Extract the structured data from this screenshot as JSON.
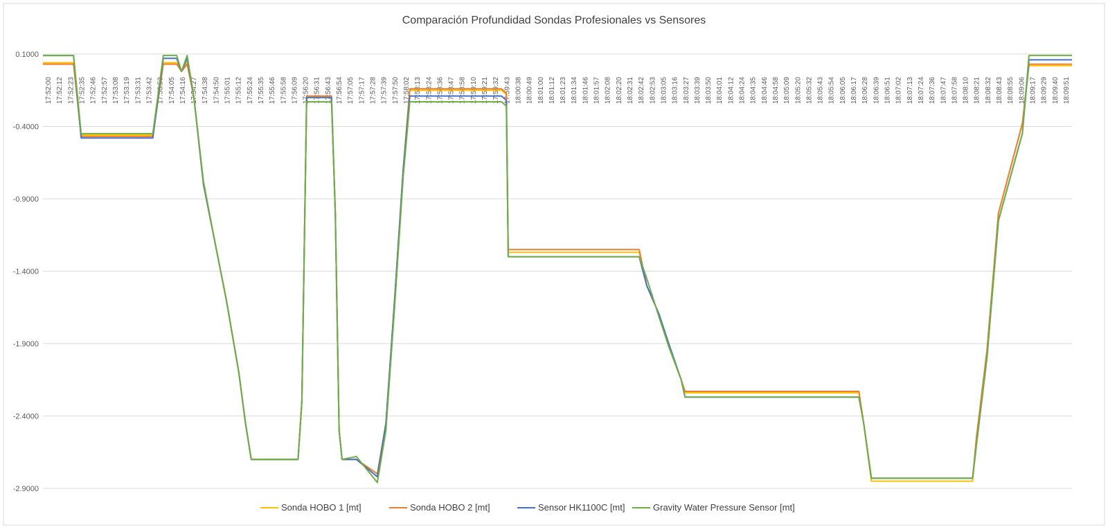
{
  "chart_data": {
    "type": "line",
    "title": "Comparación Profundidad Sondas Profesionales vs Sensores",
    "xlabel": "",
    "ylabel": "",
    "ylim": [
      -2.9,
      0.1
    ],
    "yticks": [
      0.1,
      -0.4,
      -0.9,
      -1.4,
      -1.9,
      -2.4,
      -2.9
    ],
    "ytick_labels": [
      "0.1000",
      "-0.4000",
      "-0.9000",
      "-1.4000",
      "-1.9000",
      "-2.4000",
      "-2.9000"
    ],
    "x_range": [
      "17:52:00",
      "18:09:57"
    ],
    "xtick_labels": [
      "17:52:00",
      "17:52:12",
      "17:52:23",
      "17:52:35",
      "17:52:46",
      "17:52:57",
      "17:53:08",
      "17:53:19",
      "17:53:31",
      "17:53:42",
      "17:53:53",
      "17:54:05",
      "17:54:16",
      "17:54:27",
      "17:54:38",
      "17:54:50",
      "17:55:01",
      "17:55:12",
      "17:55:24",
      "17:55:35",
      "17:55:46",
      "17:55:58",
      "17:56:09",
      "17:56:20",
      "17:56:31",
      "17:56:43",
      "17:56:54",
      "17:57:05",
      "17:57:17",
      "17:57:28",
      "17:57:39",
      "17:57:50",
      "17:58:02",
      "17:58:13",
      "17:58:24",
      "17:58:36",
      "17:58:47",
      "17:58:58",
      "17:59:10",
      "17:59:21",
      "17:59:32",
      "17:59:43",
      "18:00:38",
      "18:00:49",
      "18:01:00",
      "18:01:12",
      "18:01:23",
      "18:01:34",
      "18:01:46",
      "18:01:57",
      "18:02:08",
      "18:02:20",
      "18:02:31",
      "18:02:42",
      "18:02:53",
      "18:03:05",
      "18:03:16",
      "18:03:27",
      "18:03:39",
      "18:03:50",
      "18:04:01",
      "18:04:12",
      "18:04:24",
      "18:04:35",
      "18:04:46",
      "18:04:58",
      "18:05:09",
      "18:05:20",
      "18:05:32",
      "18:05:43",
      "18:05:54",
      "18:06:05",
      "18:06:17",
      "18:06:28",
      "18:06:39",
      "18:06:51",
      "18:07:02",
      "18:07:13",
      "18:07:24",
      "18:07:36",
      "18:07:47",
      "18:07:58",
      "18:08:10",
      "18:08:21",
      "18:08:32",
      "18:08:43",
      "18:08:55",
      "18:09:06",
      "18:09:17",
      "18:09:29",
      "18:09:40",
      "18:09:51"
    ],
    "grid": true,
    "legend_position": "bottom",
    "series": [
      {
        "name": "Sonda HOBO 1 [mt]",
        "color": "#FFC000",
        "points": [
          [
            "17:52:00",
            0.04
          ],
          [
            "17:52:32",
            0.04
          ],
          [
            "17:52:40",
            -0.46
          ],
          [
            "17:53:55",
            -0.46
          ],
          [
            "17:54:06",
            0.04
          ],
          [
            "17:54:20",
            0.04
          ],
          [
            "17:54:25",
            -0.02
          ],
          [
            "17:54:31",
            0.04
          ],
          [
            "17:54:38",
            -0.2
          ],
          [
            "17:54:48",
            -0.8
          ],
          [
            "17:55:00",
            -1.2
          ],
          [
            "17:55:12",
            -1.6
          ],
          [
            "17:55:25",
            -2.1
          ],
          [
            "17:55:32",
            -2.45
          ],
          [
            "17:55:38",
            -2.7
          ],
          [
            "17:56:27",
            -2.7
          ],
          [
            "17:56:31",
            -2.3
          ],
          [
            "17:56:36",
            -0.2
          ],
          [
            "17:57:02",
            -0.2
          ],
          [
            "17:57:06",
            -1.0
          ],
          [
            "17:57:10",
            -2.5
          ],
          [
            "17:57:13",
            -2.7
          ],
          [
            "17:57:28",
            -2.7
          ],
          [
            "17:57:50",
            -2.8
          ],
          [
            "17:57:59",
            -2.45
          ],
          [
            "17:58:08",
            -1.6
          ],
          [
            "17:58:17",
            -0.7
          ],
          [
            "17:58:24",
            -0.15
          ],
          [
            "18:00:00",
            -0.15
          ],
          [
            "18:00:05",
            -0.18
          ],
          [
            "18:00:07",
            -1.27
          ],
          [
            "18:02:24",
            -1.27
          ],
          [
            "18:02:32",
            -1.5
          ],
          [
            "18:02:45",
            -1.7
          ],
          [
            "18:02:55",
            -1.92
          ],
          [
            "18:03:08",
            -2.15
          ],
          [
            "18:03:12",
            -2.24
          ],
          [
            "18:06:14",
            -2.24
          ],
          [
            "18:06:19",
            -2.45
          ],
          [
            "18:06:27",
            -2.85
          ],
          [
            "18:08:13",
            -2.85
          ],
          [
            "18:08:17",
            -2.55
          ],
          [
            "18:08:28",
            -1.95
          ],
          [
            "18:08:40",
            -1.0
          ],
          [
            "18:09:05",
            -0.38
          ],
          [
            "18:09:12",
            0.02
          ],
          [
            "18:09:57",
            0.02
          ]
        ]
      },
      {
        "name": "Sonda HOBO 2 [mt]",
        "color": "#ED7D31",
        "points": [
          [
            "17:52:00",
            0.03
          ],
          [
            "17:52:32",
            0.03
          ],
          [
            "17:52:40",
            -0.47
          ],
          [
            "17:53:55",
            -0.47
          ],
          [
            "17:54:06",
            0.03
          ],
          [
            "17:54:20",
            0.03
          ],
          [
            "17:54:25",
            -0.02
          ],
          [
            "17:54:31",
            0.03
          ],
          [
            "17:54:38",
            -0.2
          ],
          [
            "17:54:48",
            -0.8
          ],
          [
            "17:55:00",
            -1.2
          ],
          [
            "17:55:12",
            -1.6
          ],
          [
            "17:55:25",
            -2.1
          ],
          [
            "17:55:32",
            -2.45
          ],
          [
            "17:55:38",
            -2.7
          ],
          [
            "17:56:27",
            -2.7
          ],
          [
            "17:56:31",
            -2.3
          ],
          [
            "17:56:36",
            -0.19
          ],
          [
            "17:57:02",
            -0.19
          ],
          [
            "17:57:06",
            -1.0
          ],
          [
            "17:57:10",
            -2.5
          ],
          [
            "17:57:13",
            -2.7
          ],
          [
            "17:57:28",
            -2.7
          ],
          [
            "17:57:50",
            -2.8
          ],
          [
            "17:57:59",
            -2.45
          ],
          [
            "17:58:08",
            -1.6
          ],
          [
            "17:58:17",
            -0.7
          ],
          [
            "17:58:24",
            -0.14
          ],
          [
            "18:00:00",
            -0.14
          ],
          [
            "18:00:05",
            -0.17
          ],
          [
            "18:00:07",
            -1.25
          ],
          [
            "18:02:24",
            -1.25
          ],
          [
            "18:02:32",
            -1.5
          ],
          [
            "18:02:45",
            -1.7
          ],
          [
            "18:02:55",
            -1.92
          ],
          [
            "18:03:08",
            -2.15
          ],
          [
            "18:03:12",
            -2.23
          ],
          [
            "18:06:14",
            -2.23
          ],
          [
            "18:06:19",
            -2.45
          ],
          [
            "18:06:27",
            -2.83
          ],
          [
            "18:08:13",
            -2.83
          ],
          [
            "18:08:17",
            -2.55
          ],
          [
            "18:08:28",
            -1.95
          ],
          [
            "18:08:40",
            -1.0
          ],
          [
            "18:09:05",
            -0.38
          ],
          [
            "18:09:12",
            0.03
          ],
          [
            "18:09:57",
            0.03
          ]
        ]
      },
      {
        "name": "Sensor HK1100C [mt]",
        "color": "#4472C4",
        "points": [
          [
            "17:52:00",
            0.09
          ],
          [
            "17:52:32",
            0.09
          ],
          [
            "17:52:40",
            -0.48
          ],
          [
            "17:53:55",
            -0.48
          ],
          [
            "17:54:06",
            0.07
          ],
          [
            "17:54:20",
            0.07
          ],
          [
            "17:54:25",
            -0.02
          ],
          [
            "17:54:31",
            0.07
          ],
          [
            "17:54:38",
            -0.2
          ],
          [
            "17:54:48",
            -0.8
          ],
          [
            "17:55:00",
            -1.2
          ],
          [
            "17:55:12",
            -1.6
          ],
          [
            "17:55:25",
            -2.1
          ],
          [
            "17:55:32",
            -2.45
          ],
          [
            "17:55:38",
            -2.7
          ],
          [
            "17:56:27",
            -2.7
          ],
          [
            "17:56:31",
            -2.3
          ],
          [
            "17:56:36",
            -0.2
          ],
          [
            "17:57:02",
            -0.2
          ],
          [
            "17:57:06",
            -1.0
          ],
          [
            "17:57:10",
            -2.5
          ],
          [
            "17:57:13",
            -2.7
          ],
          [
            "17:57:28",
            -2.7
          ],
          [
            "17:57:50",
            -2.82
          ],
          [
            "17:57:59",
            -2.45
          ],
          [
            "17:58:08",
            -1.6
          ],
          [
            "17:58:17",
            -0.7
          ],
          [
            "17:58:24",
            -0.19
          ],
          [
            "18:00:00",
            -0.19
          ],
          [
            "18:00:05",
            -0.22
          ],
          [
            "18:00:07",
            -1.3
          ],
          [
            "18:02:24",
            -1.3
          ],
          [
            "18:02:32",
            -1.5
          ],
          [
            "18:02:45",
            -1.7
          ],
          [
            "18:02:55",
            -1.9
          ],
          [
            "18:03:08",
            -2.15
          ],
          [
            "18:03:12",
            -2.27
          ],
          [
            "18:06:14",
            -2.27
          ],
          [
            "18:06:19",
            -2.45
          ],
          [
            "18:06:27",
            -2.83
          ],
          [
            "18:08:13",
            -2.83
          ],
          [
            "18:08:17",
            -2.6
          ],
          [
            "18:08:28",
            -2.0
          ],
          [
            "18:08:40",
            -1.05
          ],
          [
            "18:09:05",
            -0.45
          ],
          [
            "18:09:12",
            0.06
          ],
          [
            "18:09:57",
            0.06
          ]
        ]
      },
      {
        "name": "Gravity Water Pressure Sensor [mt]",
        "color": "#70AD47",
        "points": [
          [
            "17:52:00",
            0.09
          ],
          [
            "17:52:32",
            0.09
          ],
          [
            "17:52:40",
            -0.45
          ],
          [
            "17:53:55",
            -0.45
          ],
          [
            "17:54:06",
            0.09
          ],
          [
            "17:54:20",
            0.09
          ],
          [
            "17:54:25",
            -0.02
          ],
          [
            "17:54:31",
            0.09
          ],
          [
            "17:54:38",
            -0.2
          ],
          [
            "17:54:48",
            -0.78
          ],
          [
            "17:55:00",
            -1.2
          ],
          [
            "17:55:12",
            -1.6
          ],
          [
            "17:55:25",
            -2.1
          ],
          [
            "17:55:32",
            -2.45
          ],
          [
            "17:55:38",
            -2.7
          ],
          [
            "17:56:27",
            -2.7
          ],
          [
            "17:56:31",
            -2.3
          ],
          [
            "17:56:36",
            -0.23
          ],
          [
            "17:57:02",
            -0.23
          ],
          [
            "17:57:06",
            -1.0
          ],
          [
            "17:57:10",
            -2.5
          ],
          [
            "17:57:13",
            -2.7
          ],
          [
            "17:57:28",
            -2.68
          ],
          [
            "17:57:50",
            -2.86
          ],
          [
            "17:57:59",
            -2.5
          ],
          [
            "17:58:08",
            -1.65
          ],
          [
            "17:58:17",
            -0.75
          ],
          [
            "17:58:24",
            -0.23
          ],
          [
            "18:00:00",
            -0.23
          ],
          [
            "18:00:05",
            -0.26
          ],
          [
            "18:00:07",
            -1.3
          ],
          [
            "18:02:24",
            -1.3
          ],
          [
            "18:02:32",
            -1.45
          ],
          [
            "18:02:45",
            -1.72
          ],
          [
            "18:02:55",
            -1.92
          ],
          [
            "18:03:08",
            -2.15
          ],
          [
            "18:03:12",
            -2.27
          ],
          [
            "18:06:14",
            -2.27
          ],
          [
            "18:06:19",
            -2.45
          ],
          [
            "18:06:27",
            -2.83
          ],
          [
            "18:08:13",
            -2.83
          ],
          [
            "18:08:17",
            -2.6
          ],
          [
            "18:08:28",
            -2.0
          ],
          [
            "18:08:40",
            -1.05
          ],
          [
            "18:09:05",
            -0.45
          ],
          [
            "18:09:12",
            0.09
          ],
          [
            "18:09:57",
            0.09
          ]
        ]
      }
    ]
  }
}
